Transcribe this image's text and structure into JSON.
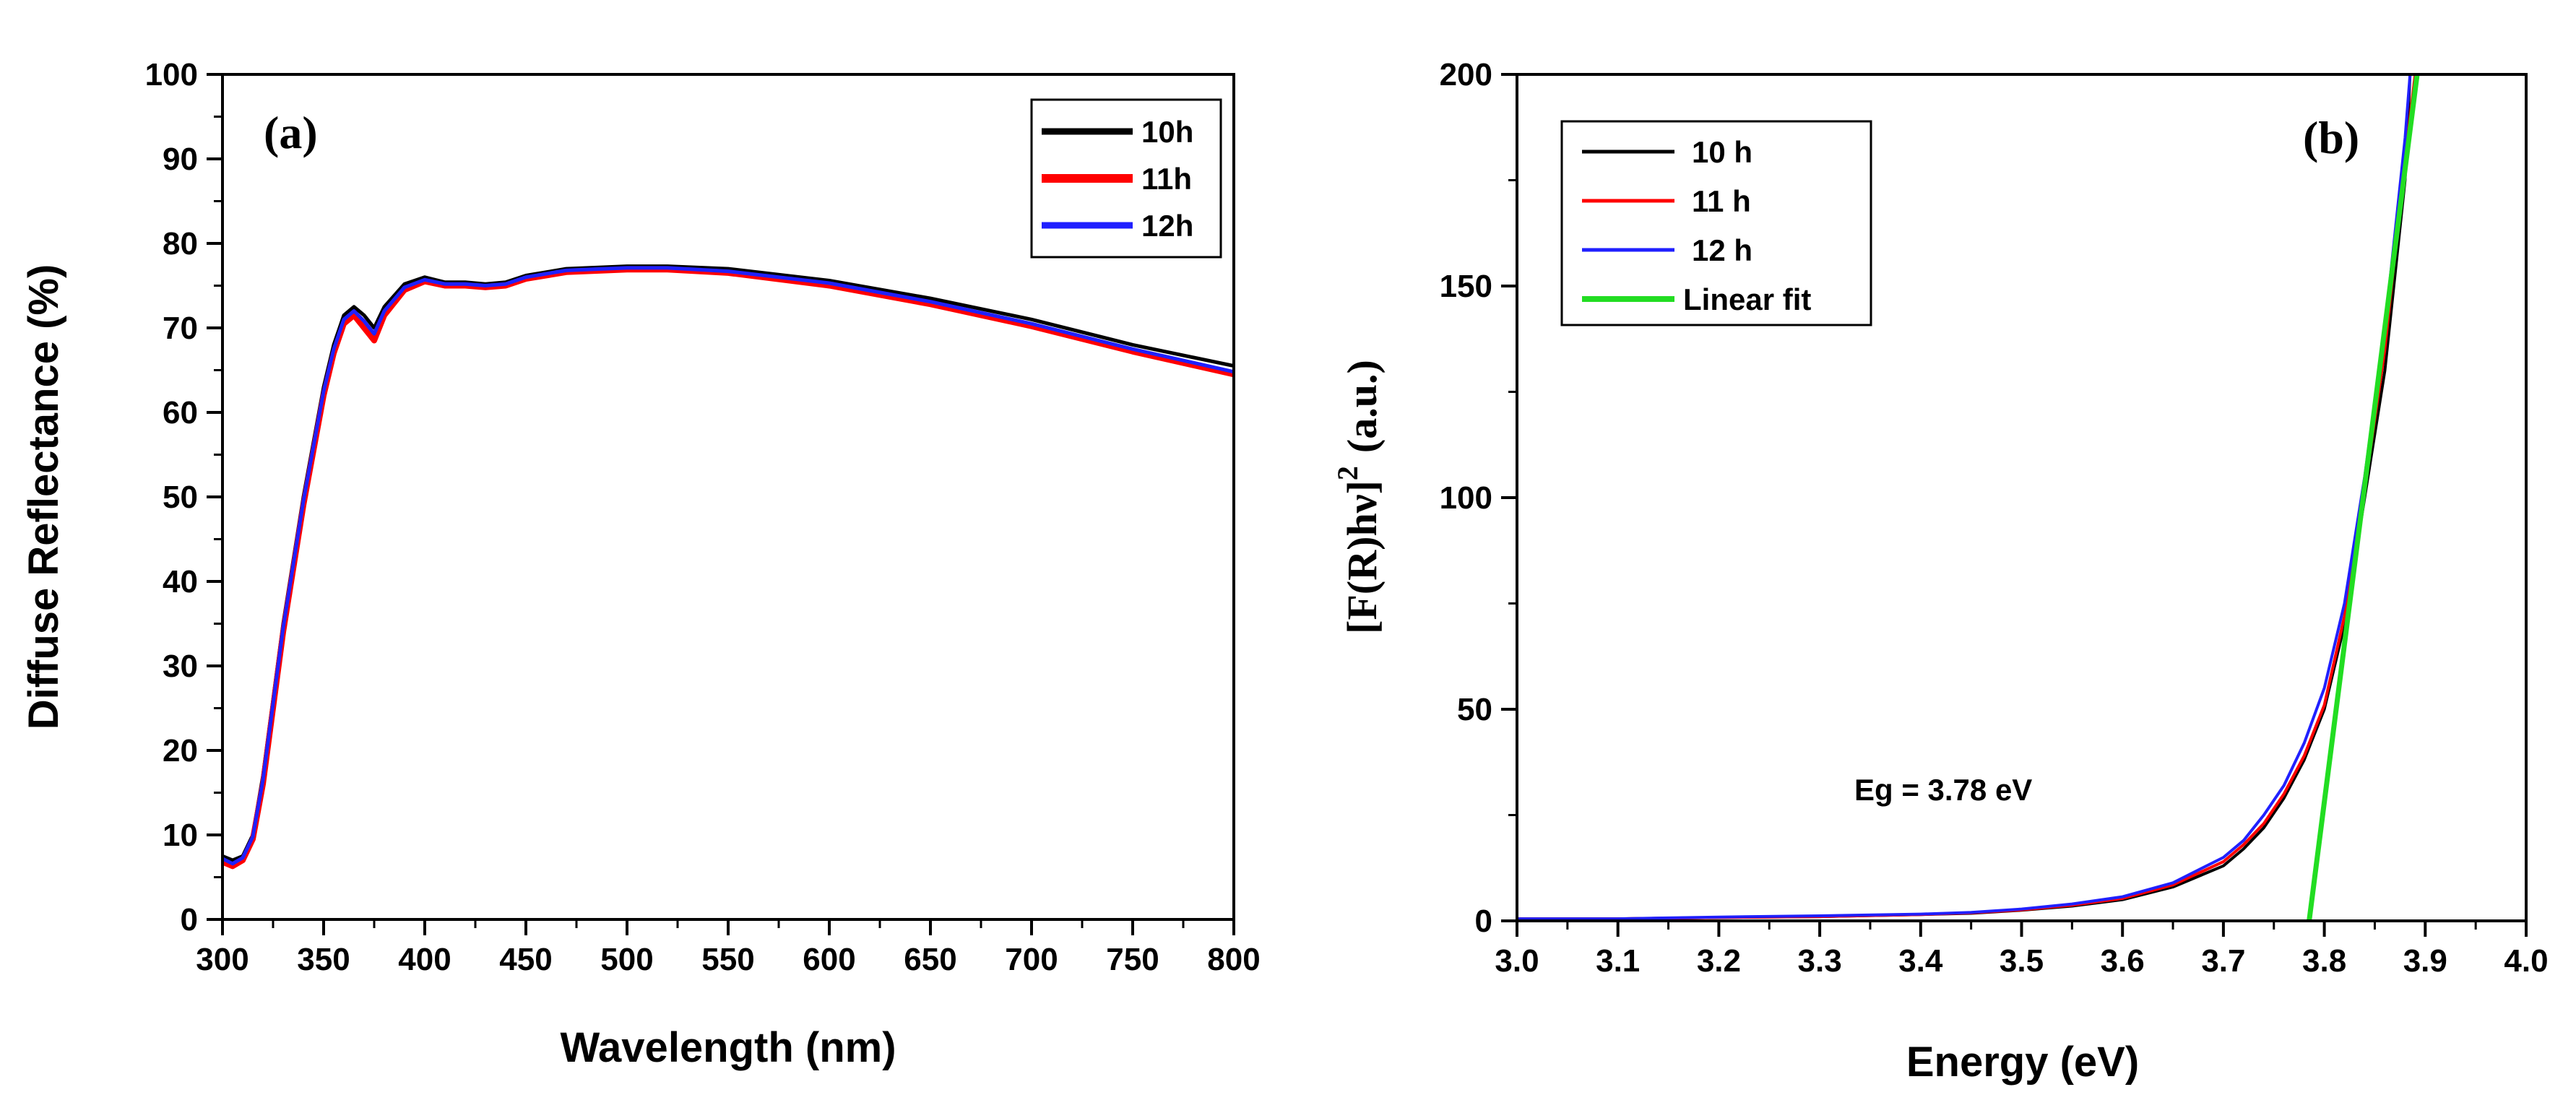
{
  "chart_data": [
    {
      "type": "line",
      "panel_label": "(a)",
      "title": "",
      "xlabel": "Wavelength (nm)",
      "ylabel": "Diffuse Reflectance (%)",
      "xlim": [
        300,
        800
      ],
      "ylim": [
        0,
        100
      ],
      "xticks": [
        "300",
        "350",
        "400",
        "450",
        "500",
        "550",
        "600",
        "650",
        "700",
        "750",
        "800"
      ],
      "yticks": [
        "0",
        "10",
        "20",
        "30",
        "40",
        "50",
        "60",
        "70",
        "80",
        "90",
        "100"
      ],
      "legend_position": "top-right",
      "grid": false,
      "series": [
        {
          "name": "10h",
          "color": "#000000",
          "x": [
            300,
            305,
            310,
            315,
            320,
            325,
            330,
            340,
            350,
            355,
            360,
            365,
            370,
            375,
            380,
            390,
            400,
            410,
            420,
            430,
            440,
            450,
            470,
            500,
            520,
            550,
            600,
            650,
            700,
            750,
            800
          ],
          "y": [
            7.5,
            7,
            7.5,
            10,
            17,
            26,
            35,
            50,
            63,
            68,
            71.5,
            72.5,
            71.5,
            70,
            72.5,
            75.2,
            76,
            75.4,
            75.4,
            75.2,
            75.4,
            76.2,
            77,
            77.3,
            77.3,
            77,
            75.6,
            73.5,
            71,
            68,
            65.5
          ]
        },
        {
          "name": "11h",
          "color": "#ff0000",
          "x": [
            300,
            305,
            310,
            315,
            320,
            325,
            330,
            340,
            350,
            355,
            360,
            365,
            370,
            375,
            380,
            390,
            400,
            410,
            420,
            430,
            440,
            450,
            470,
            500,
            520,
            550,
            600,
            650,
            700,
            750,
            800
          ],
          "y": [
            6.8,
            6.3,
            7,
            9.5,
            16,
            25,
            34,
            49,
            62,
            67,
            70.5,
            71.5,
            70,
            68.5,
            71.5,
            74.5,
            75.5,
            75,
            75,
            74.8,
            75,
            75.8,
            76.6,
            76.9,
            76.9,
            76.5,
            75,
            72.8,
            70.2,
            67.2,
            64.5
          ]
        },
        {
          "name": "12h",
          "color": "#2020ff",
          "x": [
            300,
            305,
            310,
            315,
            320,
            325,
            330,
            340,
            350,
            355,
            360,
            365,
            370,
            375,
            380,
            390,
            400,
            410,
            420,
            430,
            440,
            450,
            470,
            500,
            520,
            550,
            600,
            650,
            700,
            750,
            800
          ],
          "y": [
            7.2,
            6.6,
            7.3,
            9.8,
            16.5,
            25.5,
            34.5,
            49.5,
            62.5,
            67.5,
            71,
            72,
            70.8,
            69.3,
            72,
            74.8,
            75.7,
            75.2,
            75.2,
            75,
            75.2,
            76,
            76.8,
            77.1,
            77.1,
            76.7,
            75.3,
            73.1,
            70.5,
            67.5,
            64.8
          ]
        }
      ]
    },
    {
      "type": "line",
      "panel_label": "(b)",
      "title": "",
      "xlabel": "Energy (eV)",
      "ylabel_main": "[F(R)hν]",
      "ylabel_sup": "2",
      "ylabel_unit": "(a.u.)",
      "xlim": [
        3.0,
        4.0
      ],
      "ylim": [
        0,
        200
      ],
      "xticks": [
        "3.0",
        "3.1",
        "3.2",
        "3.3",
        "3.4",
        "3.5",
        "3.6",
        "3.7",
        "3.8",
        "3.9",
        "4.0"
      ],
      "yticks": [
        "0",
        "50",
        "100",
        "150",
        "200"
      ],
      "legend_position": "top-left",
      "grid": false,
      "annotation": "Eg = 3.78 eV",
      "annotation_at": [
        3.32,
        31
      ],
      "series": [
        {
          "name": "10 h",
          "color": "#000000",
          "x": [
            3.0,
            3.1,
            3.2,
            3.3,
            3.4,
            3.45,
            3.5,
            3.55,
            3.6,
            3.65,
            3.7,
            3.72,
            3.74,
            3.76,
            3.78,
            3.8,
            3.82,
            3.84,
            3.86,
            3.88,
            3.885
          ],
          "y": [
            0.5,
            0.5,
            0.8,
            1,
            1.5,
            1.8,
            2.5,
            3.5,
            5,
            8,
            13,
            17,
            22,
            29,
            38,
            50,
            70,
            100,
            130,
            175,
            200
          ]
        },
        {
          "name": "11 h",
          "color": "#ff0000",
          "x": [
            3.0,
            3.1,
            3.2,
            3.3,
            3.4,
            3.45,
            3.5,
            3.55,
            3.6,
            3.65,
            3.7,
            3.72,
            3.74,
            3.76,
            3.78,
            3.8,
            3.82,
            3.84,
            3.86,
            3.88,
            3.89
          ],
          "y": [
            0.5,
            0.5,
            0.8,
            1,
            1.5,
            1.9,
            2.6,
            3.7,
            5.3,
            8.5,
            14,
            18,
            23,
            30,
            39,
            51,
            72,
            102,
            135,
            180,
            200
          ]
        },
        {
          "name": "12 h",
          "color": "#2020ff",
          "x": [
            3.0,
            3.1,
            3.2,
            3.3,
            3.4,
            3.45,
            3.5,
            3.55,
            3.6,
            3.65,
            3.7,
            3.72,
            3.74,
            3.76,
            3.78,
            3.8,
            3.82,
            3.84,
            3.86,
            3.88,
            3.885
          ],
          "y": [
            0.5,
            0.5,
            0.9,
            1.2,
            1.6,
            2,
            2.8,
            4,
            5.7,
            9,
            15,
            19,
            25,
            32,
            42,
            55,
            75,
            105,
            140,
            185,
            200
          ]
        },
        {
          "name": "Linear fit",
          "color": "#22dd22",
          "x": [
            3.785,
            3.892
          ],
          "y": [
            0,
            200
          ]
        }
      ]
    }
  ]
}
